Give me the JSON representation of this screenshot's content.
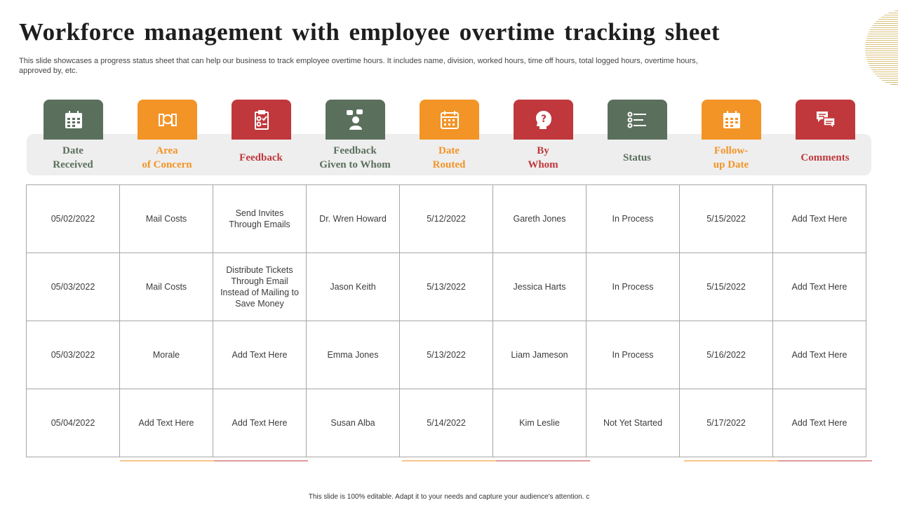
{
  "title": "Workforce management with employee overtime tracking sheet",
  "subtitle": "This slide showcases a progress status sheet that can help our business to track employee overtime hours. It includes name, division, worked hours, time off hours, total logged hours, overtime hours, approved by,  etc.",
  "colors": {
    "green": "#5b6f5d",
    "orange": "#f39427",
    "red": "#c0383c",
    "band": "#eeeeee",
    "accent_gold": "#d9c07a"
  },
  "columns": [
    {
      "label_line1": "Date",
      "label_line2": "Received",
      "icon": "calendar-icon",
      "color": "green"
    },
    {
      "label_line1": "Area",
      "label_line2": "of Concern",
      "icon": "search-document-icon",
      "color": "orange"
    },
    {
      "label_line1": "Feedback",
      "label_line2": "",
      "icon": "feedback-clipboard-icon",
      "color": "red"
    },
    {
      "label_line1": "Feedback",
      "label_line2": "Given to Whom",
      "icon": "person-chat-icon",
      "color": "green"
    },
    {
      "label_line1": "Date",
      "label_line2": "Routed",
      "icon": "calendar-grid-icon",
      "color": "orange"
    },
    {
      "label_line1": "By",
      "label_line2": "Whom",
      "icon": "head-question-icon",
      "color": "red"
    },
    {
      "label_line1": "Status",
      "label_line2": "",
      "icon": "status-sliders-icon",
      "color": "green"
    },
    {
      "label_line1": "Follow-",
      "label_line2": "up Date",
      "icon": "calendar-icon",
      "color": "orange"
    },
    {
      "label_line1": "Comments",
      "label_line2": "",
      "icon": "chat-bubbles-icon",
      "color": "red"
    }
  ],
  "rows": [
    [
      "05/02/2022",
      "Mail Costs",
      "Send Invites Through  Emails",
      "Dr. Wren Howard",
      "5/12/2022",
      "Gareth Jones",
      "In Process",
      "5/15/2022",
      "Add Text Here"
    ],
    [
      "05/03/2022",
      "Mail Costs",
      "Distribute Tickets Through  Email Instead of Mailing to Save Money",
      "Jason Keith",
      "5/13/2022",
      "Jessica Harts",
      "In Process",
      "5/15/2022",
      "Add Text Here"
    ],
    [
      "05/03/2022",
      "Morale",
      "Add Text Here",
      "Emma Jones",
      "5/13/2022",
      "Liam Jameson",
      "In Process",
      "5/16/2022",
      "Add Text Here"
    ],
    [
      "05/04/2022",
      "Add Text Here",
      "Add Text Here",
      "Susan Alba",
      "5/14/2022",
      "Kim Leslie",
      "Not Yet Started",
      "5/17/2022",
      "Add Text Here"
    ]
  ],
  "footer": "This slide is 100% editable.  Adapt it to your needs and capture your audience's attention.  c"
}
